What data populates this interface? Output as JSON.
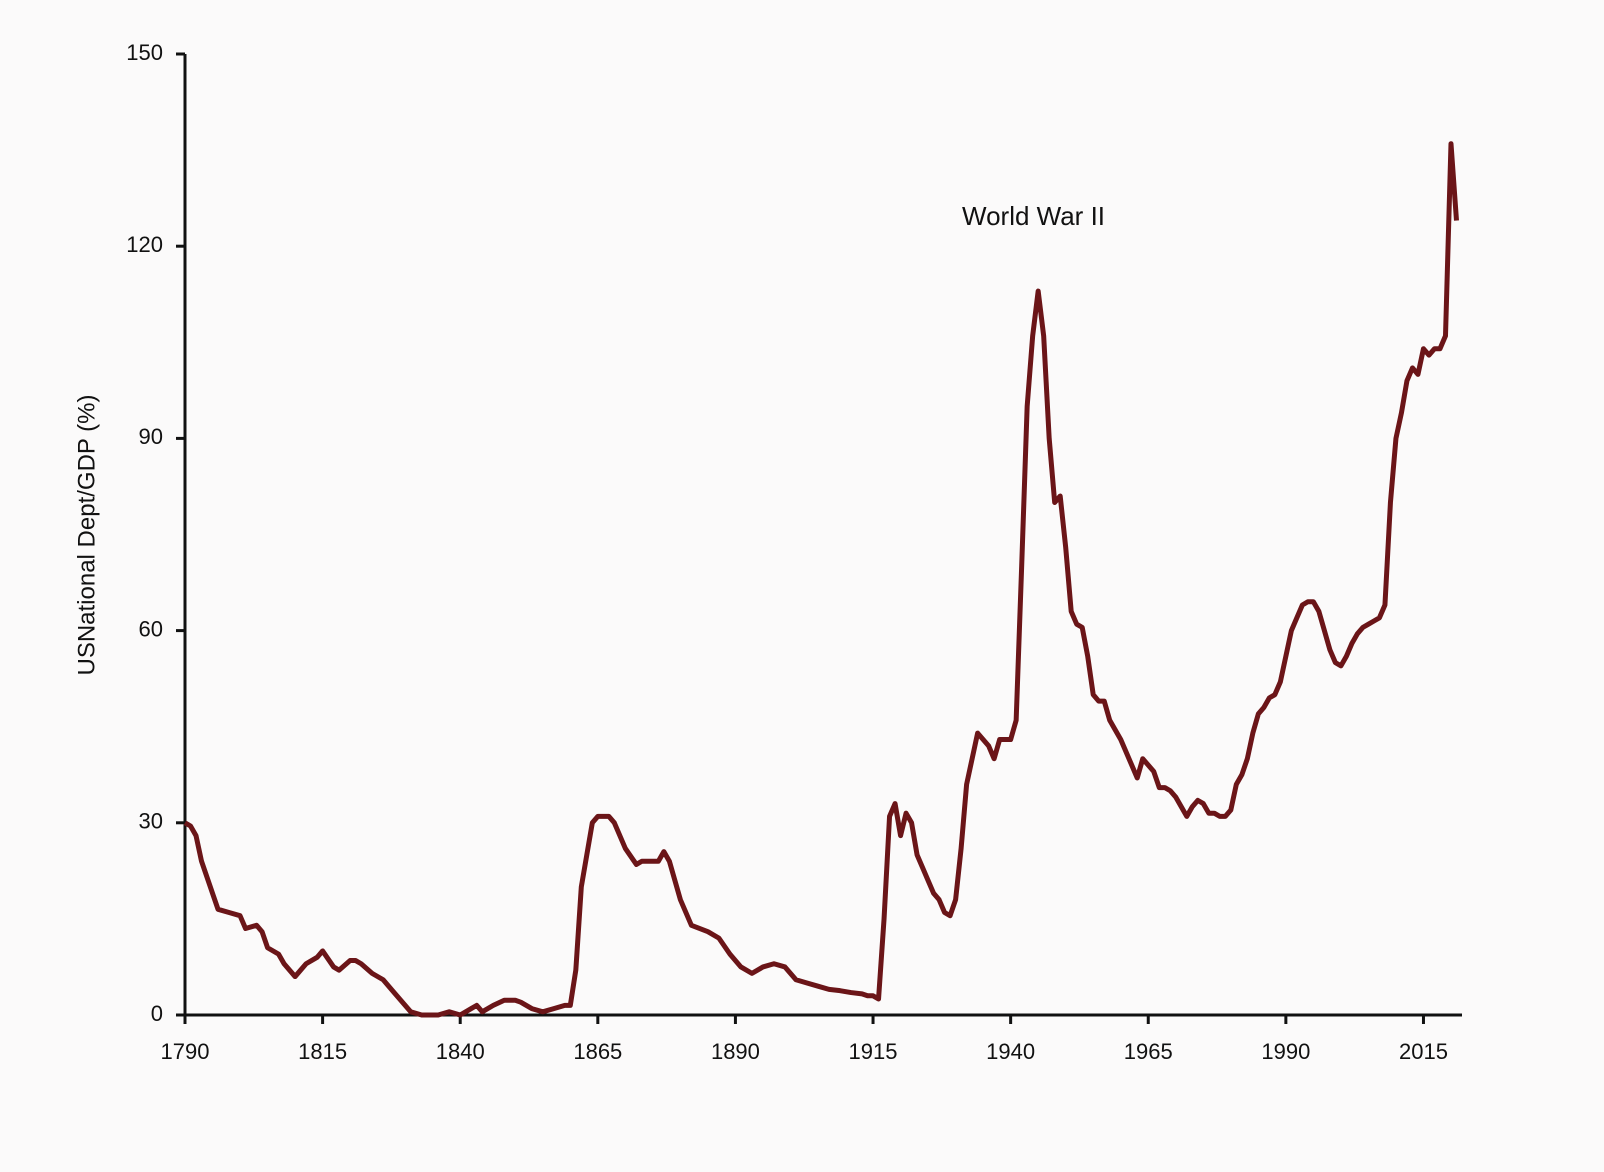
{
  "chart_data": {
    "type": "line",
    "y_label": "USNational Dept/GDP (%)",
    "annotation": "World War II",
    "x": [
      1790,
      1791,
      1792,
      1793,
      1795,
      1796,
      1798,
      1800,
      1801,
      1803,
      1804,
      1805,
      1807,
      1808,
      1810,
      1812,
      1814,
      1815,
      1817,
      1818,
      1820,
      1821,
      1822,
      1824,
      1826,
      1828,
      1830,
      1831,
      1833,
      1836,
      1838,
      1840,
      1842,
      1843,
      1844,
      1846,
      1848,
      1850,
      1851,
      1853,
      1855,
      1857,
      1859,
      1860,
      1861,
      1862,
      1863,
      1864,
      1865,
      1867,
      1868,
      1870,
      1872,
      1873,
      1875,
      1876,
      1877,
      1878,
      1879,
      1880,
      1882,
      1885,
      1887,
      1889,
      1891,
      1893,
      1895,
      1897,
      1899,
      1901,
      1903,
      1905,
      1907,
      1909,
      1911,
      1913,
      1914,
      1915,
      1916,
      1917,
      1918,
      1919,
      1920,
      1921,
      1922,
      1923,
      1924,
      1925,
      1926,
      1927,
      1928,
      1929,
      1930,
      1931,
      1932,
      1933,
      1934,
      1935,
      1936,
      1937,
      1938,
      1939,
      1940,
      1941,
      1942,
      1943,
      1944,
      1945,
      1946,
      1947,
      1948,
      1949,
      1950,
      1951,
      1952,
      1953,
      1954,
      1955,
      1956,
      1957,
      1958,
      1959,
      1960,
      1962,
      1963,
      1964,
      1965,
      1966,
      1967,
      1968,
      1969,
      1970,
      1971,
      1972,
      1973,
      1974,
      1975,
      1976,
      1977,
      1978,
      1979,
      1980,
      1981,
      1982,
      1983,
      1984,
      1985,
      1986,
      1987,
      1988,
      1989,
      1990,
      1991,
      1992,
      1993,
      1994,
      1995,
      1996,
      1997,
      1998,
      1999,
      2000,
      2001,
      2002,
      2003,
      2004,
      2005,
      2006,
      2007,
      2008,
      2009,
      2010,
      2011,
      2012,
      2013,
      2014,
      2015,
      2016,
      2017,
      2018,
      2019,
      2020,
      2021
    ],
    "series": [
      {
        "name": "US National Debt/GDP",
        "color": "#6b1518",
        "values": [
          30,
          29.5,
          28,
          24,
          19,
          16.5,
          16,
          15.5,
          13.5,
          14,
          13,
          10.5,
          9.5,
          8,
          6,
          8,
          9,
          10,
          7.5,
          7,
          8.5,
          8.5,
          8,
          6.5,
          5.5,
          3.5,
          1.5,
          0.5,
          0,
          0,
          0.5,
          0,
          1,
          1.5,
          0.5,
          1.5,
          2.3,
          2.3,
          2,
          1,
          0.5,
          1,
          1.5,
          1.5,
          7,
          20,
          25,
          30,
          31,
          31,
          30,
          26,
          23.5,
          24,
          24,
          24,
          25.5,
          24,
          21,
          18,
          14,
          13,
          12,
          9.5,
          7.5,
          6.5,
          7.5,
          8,
          7.5,
          5.5,
          5,
          4.5,
          4,
          3.8,
          3.5,
          3.3,
          3,
          3,
          2.5,
          15,
          31,
          33,
          28,
          31.5,
          30,
          25,
          23,
          21,
          19,
          18,
          16,
          15.5,
          18,
          26,
          36,
          40,
          44,
          43,
          42,
          40,
          43,
          43,
          43,
          46,
          70,
          95,
          106,
          113,
          106,
          90,
          80,
          81,
          73,
          63,
          61,
          60.5,
          56,
          50,
          49,
          49,
          46,
          44.5,
          43,
          39,
          37,
          40,
          39,
          38,
          35.5,
          35.5,
          35,
          34,
          32.5,
          31,
          32.5,
          33.5,
          33,
          31.5,
          31.5,
          31,
          31,
          32,
          36,
          37.5,
          40,
          44,
          47,
          48,
          49.5,
          50,
          52,
          56,
          60,
          62,
          64,
          64.5,
          64.5,
          63,
          60,
          57,
          55,
          54.5,
          56,
          58,
          59.5,
          60.5,
          61,
          61.5,
          62,
          64,
          80,
          90,
          94,
          99,
          101,
          100,
          104,
          103,
          104,
          104,
          106,
          136,
          124
        ]
      }
    ],
    "xlim": [
      1790,
      2022
    ],
    "ylim": [
      0,
      150
    ],
    "xticks": [
      1790,
      1815,
      1840,
      1865,
      1890,
      1915,
      1940,
      1965,
      1990,
      2015
    ],
    "yticks": [
      0,
      30,
      60,
      90,
      120,
      150
    ]
  }
}
